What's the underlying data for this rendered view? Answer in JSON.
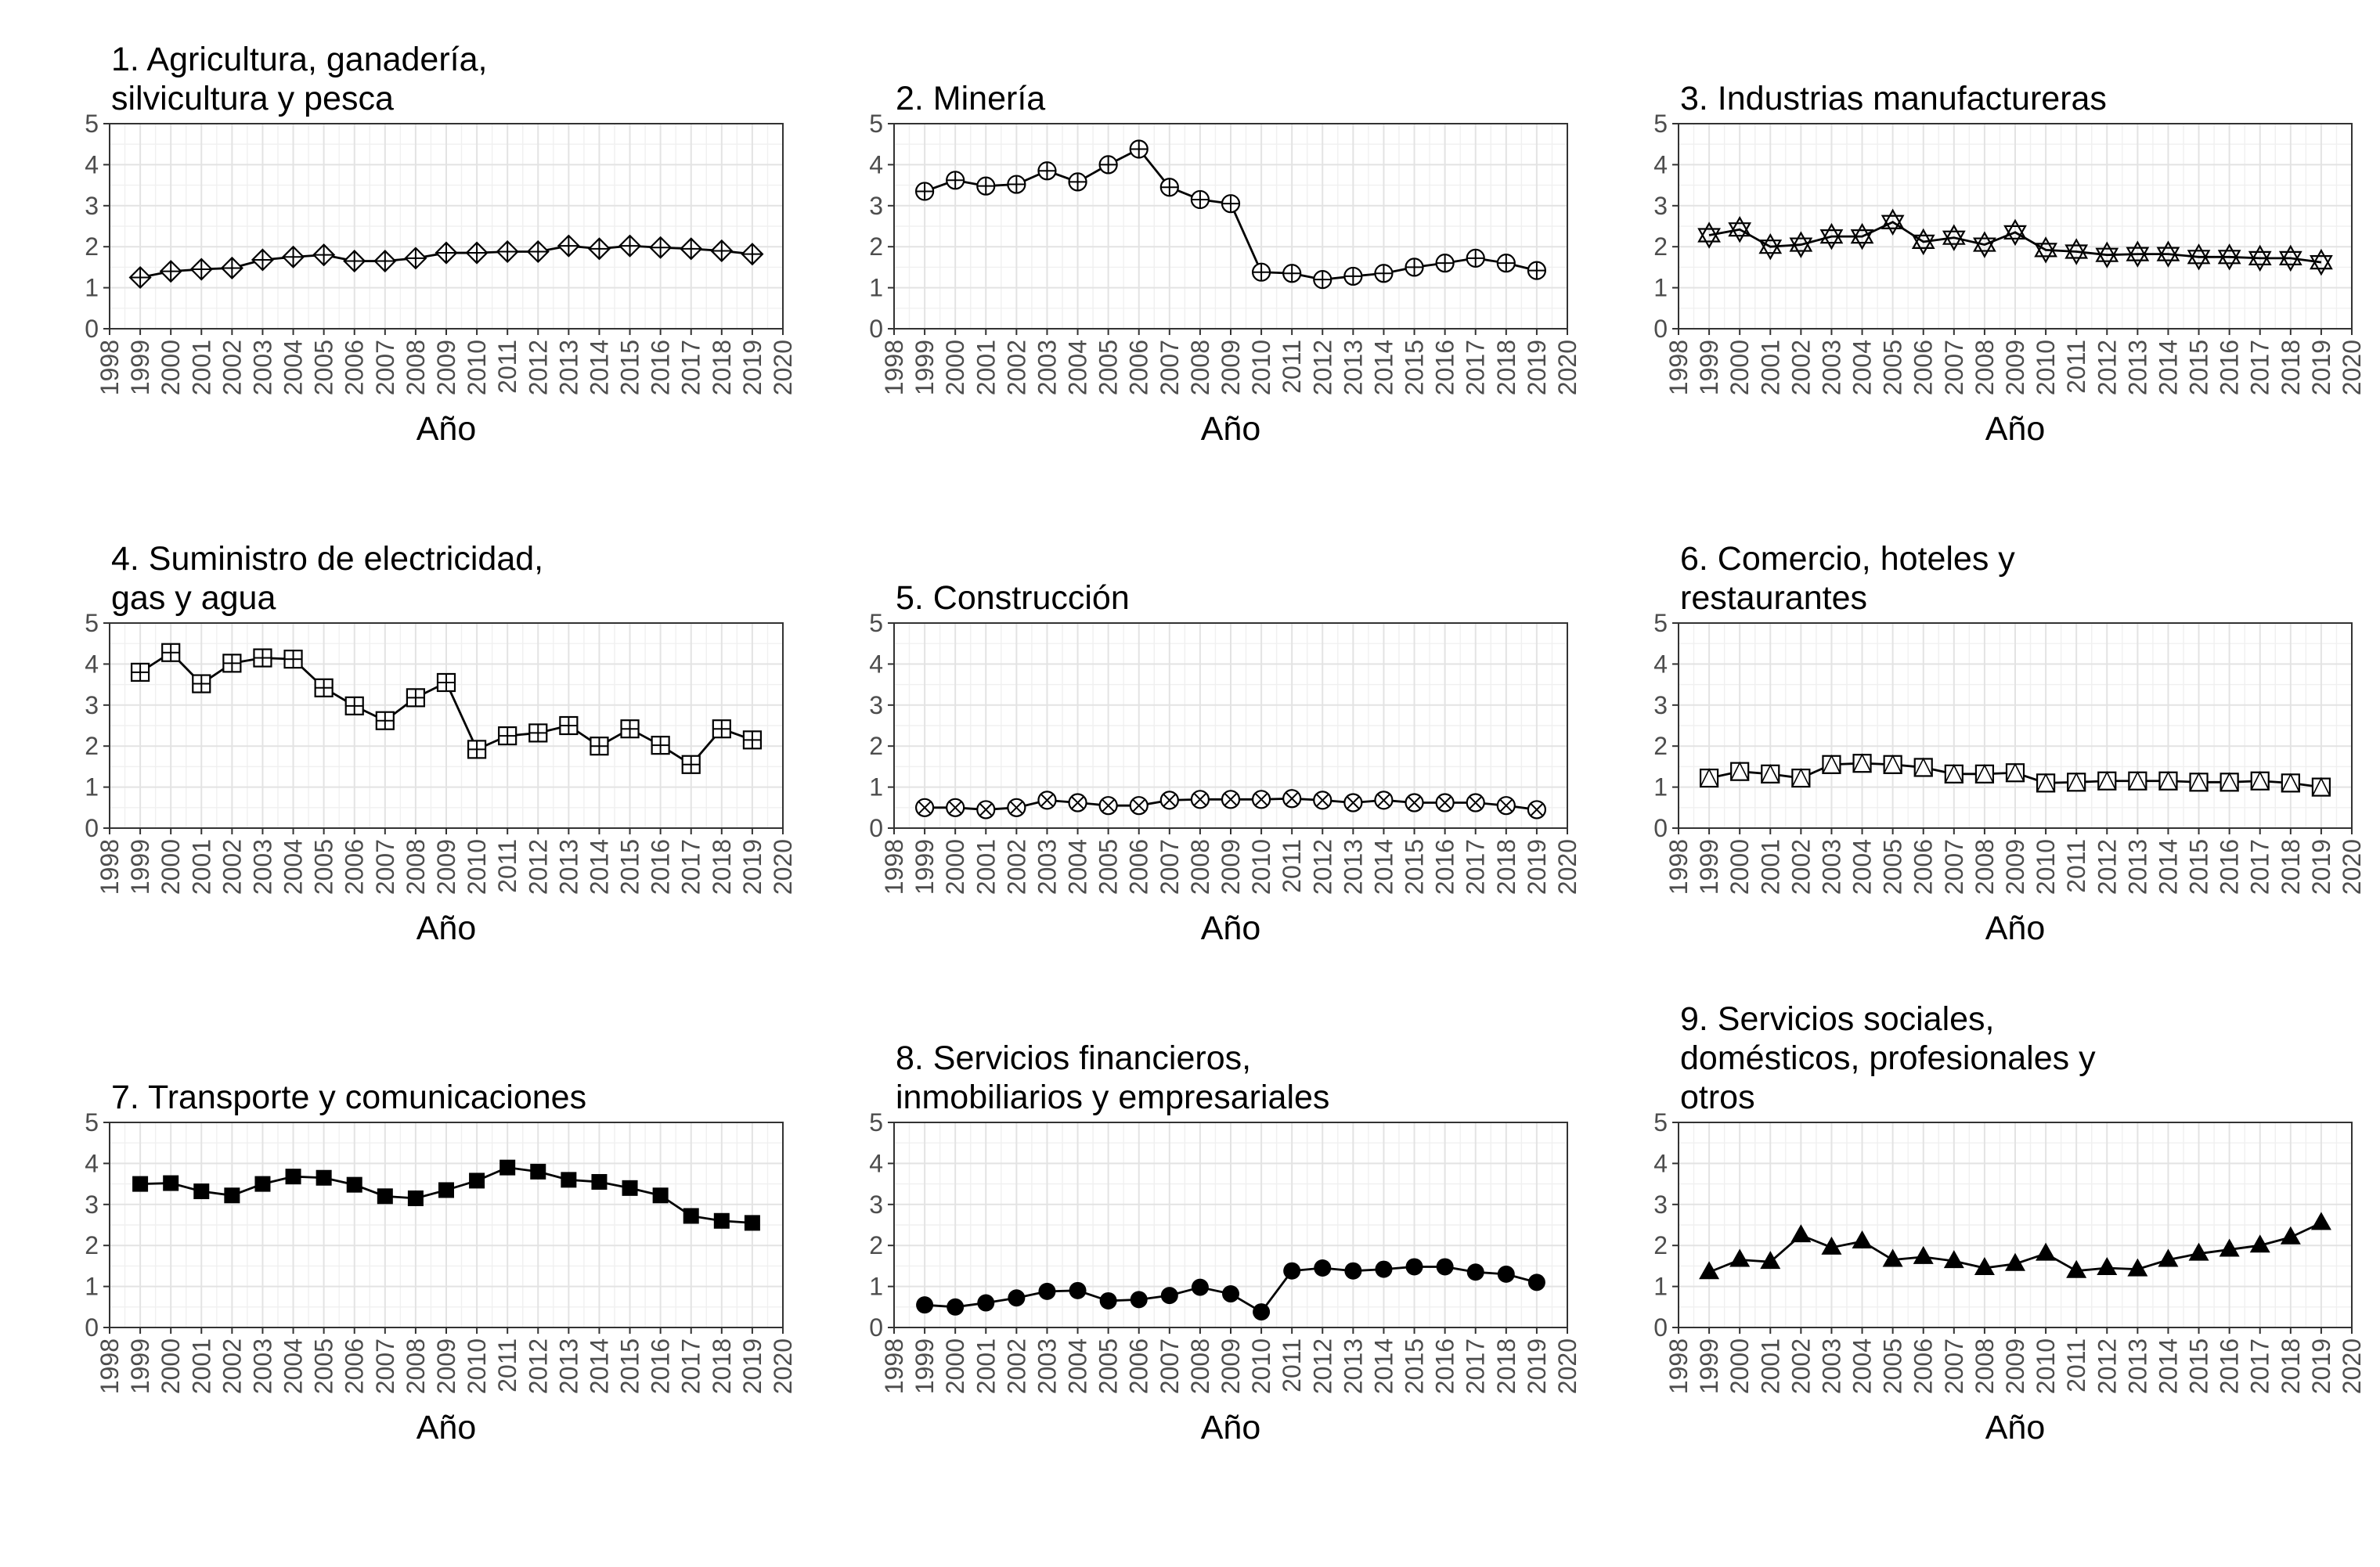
{
  "chart_data": [
    {
      "type": "line",
      "title_lines": [
        "1. Agricultura, ganadería,",
        "silvicultura y pesca"
      ],
      "xlabel": "Año",
      "xlim": [
        1998,
        2020
      ],
      "ylim": [
        0,
        5
      ],
      "x_ticks": [
        1998,
        1999,
        2000,
        2001,
        2002,
        2003,
        2004,
        2005,
        2006,
        2007,
        2008,
        2009,
        2010,
        2011,
        2012,
        2013,
        2014,
        2015,
        2016,
        2017,
        2018,
        2019,
        2020
      ],
      "y_ticks": [
        0,
        1,
        2,
        3,
        4,
        5
      ],
      "marker": "diamond-plus",
      "grid": true,
      "x": [
        1999,
        2000,
        2001,
        2002,
        2003,
        2004,
        2005,
        2006,
        2007,
        2008,
        2009,
        2010,
        2011,
        2012,
        2013,
        2014,
        2015,
        2016,
        2017,
        2018,
        2019
      ],
      "values": [
        1.25,
        1.4,
        1.45,
        1.48,
        1.68,
        1.75,
        1.8,
        1.65,
        1.65,
        1.72,
        1.85,
        1.85,
        1.88,
        1.88,
        2.02,
        1.95,
        2.02,
        1.98,
        1.95,
        1.9,
        1.82
      ]
    },
    {
      "type": "line",
      "title_lines": [
        "2. Minería"
      ],
      "xlabel": "Año",
      "xlim": [
        1998,
        2020
      ],
      "ylim": [
        0,
        5
      ],
      "x_ticks": [
        1998,
        1999,
        2000,
        2001,
        2002,
        2003,
        2004,
        2005,
        2006,
        2007,
        2008,
        2009,
        2010,
        2011,
        2012,
        2013,
        2014,
        2015,
        2016,
        2017,
        2018,
        2019,
        2020
      ],
      "y_ticks": [
        0,
        1,
        2,
        3,
        4,
        5
      ],
      "marker": "circle-plus",
      "grid": true,
      "x": [
        1999,
        2000,
        2001,
        2002,
        2003,
        2004,
        2005,
        2006,
        2007,
        2008,
        2009,
        2010,
        2011,
        2012,
        2013,
        2014,
        2015,
        2016,
        2017,
        2018,
        2019
      ],
      "values": [
        3.35,
        3.62,
        3.48,
        3.52,
        3.85,
        3.58,
        4.0,
        4.38,
        3.45,
        3.15,
        3.05,
        1.38,
        1.35,
        1.2,
        1.28,
        1.35,
        1.5,
        1.6,
        1.72,
        1.6,
        1.42
      ]
    },
    {
      "type": "line",
      "title_lines": [
        "3. Industrias manufactureras"
      ],
      "xlabel": "Año",
      "xlim": [
        1998,
        2020
      ],
      "ylim": [
        0,
        5
      ],
      "x_ticks": [
        1998,
        1999,
        2000,
        2001,
        2002,
        2003,
        2004,
        2005,
        2006,
        2007,
        2008,
        2009,
        2010,
        2011,
        2012,
        2013,
        2014,
        2015,
        2016,
        2017,
        2018,
        2019,
        2020
      ],
      "y_ticks": [
        0,
        1,
        2,
        3,
        4,
        5
      ],
      "marker": "triangles-star",
      "grid": true,
      "x": [
        1999,
        2000,
        2001,
        2002,
        2003,
        2004,
        2005,
        2006,
        2007,
        2008,
        2009,
        2010,
        2011,
        2012,
        2013,
        2014,
        2015,
        2016,
        2017,
        2018,
        2019
      ],
      "values": [
        2.28,
        2.42,
        2.0,
        2.05,
        2.25,
        2.25,
        2.6,
        2.12,
        2.22,
        2.05,
        2.35,
        1.92,
        1.88,
        1.8,
        1.82,
        1.82,
        1.75,
        1.75,
        1.72,
        1.72,
        1.62
      ]
    },
    {
      "type": "line",
      "title_lines": [
        "4. Suministro de electricidad,",
        "gas y agua"
      ],
      "xlabel": "Año",
      "xlim": [
        1998,
        2020
      ],
      "ylim": [
        0,
        5
      ],
      "x_ticks": [
        1998,
        1999,
        2000,
        2001,
        2002,
        2003,
        2004,
        2005,
        2006,
        2007,
        2008,
        2009,
        2010,
        2011,
        2012,
        2013,
        2014,
        2015,
        2016,
        2017,
        2018,
        2019,
        2020
      ],
      "y_ticks": [
        0,
        1,
        2,
        3,
        4,
        5
      ],
      "marker": "square-plus",
      "grid": true,
      "x": [
        1999,
        2000,
        2001,
        2002,
        2003,
        2004,
        2005,
        2006,
        2007,
        2008,
        2009,
        2010,
        2011,
        2012,
        2013,
        2014,
        2015,
        2016,
        2017,
        2018,
        2019
      ],
      "values": [
        3.8,
        4.28,
        3.52,
        4.02,
        4.15,
        4.12,
        3.42,
        2.98,
        2.62,
        3.18,
        3.55,
        1.92,
        2.25,
        2.32,
        2.5,
        2.0,
        2.42,
        2.02,
        1.55,
        2.42,
        2.15
      ]
    },
    {
      "type": "line",
      "title_lines": [
        "5. Construcción"
      ],
      "xlabel": "Año",
      "xlim": [
        1998,
        2020
      ],
      "ylim": [
        0,
        5
      ],
      "x_ticks": [
        1998,
        1999,
        2000,
        2001,
        2002,
        2003,
        2004,
        2005,
        2006,
        2007,
        2008,
        2009,
        2010,
        2011,
        2012,
        2013,
        2014,
        2015,
        2016,
        2017,
        2018,
        2019,
        2020
      ],
      "y_ticks": [
        0,
        1,
        2,
        3,
        4,
        5
      ],
      "marker": "circle-cross",
      "grid": true,
      "x": [
        1999,
        2000,
        2001,
        2002,
        2003,
        2004,
        2005,
        2006,
        2007,
        2008,
        2009,
        2010,
        2011,
        2012,
        2013,
        2014,
        2015,
        2016,
        2017,
        2018,
        2019
      ],
      "values": [
        0.5,
        0.5,
        0.45,
        0.5,
        0.68,
        0.62,
        0.55,
        0.55,
        0.68,
        0.7,
        0.7,
        0.7,
        0.72,
        0.68,
        0.62,
        0.68,
        0.62,
        0.62,
        0.62,
        0.55,
        0.45
      ]
    },
    {
      "type": "line",
      "title_lines": [
        "6. Comercio, hoteles y",
        "restaurantes"
      ],
      "xlabel": "Año",
      "xlim": [
        1998,
        2020
      ],
      "ylim": [
        0,
        5
      ],
      "x_ticks": [
        1998,
        1999,
        2000,
        2001,
        2002,
        2003,
        2004,
        2005,
        2006,
        2007,
        2008,
        2009,
        2010,
        2011,
        2012,
        2013,
        2014,
        2015,
        2016,
        2017,
        2018,
        2019,
        2020
      ],
      "y_ticks": [
        0,
        1,
        2,
        3,
        4,
        5
      ],
      "marker": "square-triangle",
      "grid": true,
      "x": [
        1999,
        2000,
        2001,
        2002,
        2003,
        2004,
        2005,
        2006,
        2007,
        2008,
        2009,
        2010,
        2011,
        2012,
        2013,
        2014,
        2015,
        2016,
        2017,
        2018,
        2019
      ],
      "values": [
        1.22,
        1.38,
        1.32,
        1.22,
        1.55,
        1.58,
        1.55,
        1.48,
        1.32,
        1.32,
        1.35,
        1.1,
        1.12,
        1.15,
        1.15,
        1.15,
        1.12,
        1.12,
        1.15,
        1.1,
        1.0
      ]
    },
    {
      "type": "line",
      "title_lines": [
        "7. Transporte y comunicaciones"
      ],
      "xlabel": "Año",
      "xlim": [
        1998,
        2020
      ],
      "ylim": [
        0,
        5
      ],
      "x_ticks": [
        1998,
        1999,
        2000,
        2001,
        2002,
        2003,
        2004,
        2005,
        2006,
        2007,
        2008,
        2009,
        2010,
        2011,
        2012,
        2013,
        2014,
        2015,
        2016,
        2017,
        2018,
        2019,
        2020
      ],
      "y_ticks": [
        0,
        1,
        2,
        3,
        4,
        5
      ],
      "marker": "filled-square",
      "grid": true,
      "x": [
        1999,
        2000,
        2001,
        2002,
        2003,
        2004,
        2005,
        2006,
        2007,
        2008,
        2009,
        2010,
        2011,
        2012,
        2013,
        2014,
        2015,
        2016,
        2017,
        2018,
        2019
      ],
      "values": [
        3.5,
        3.52,
        3.32,
        3.22,
        3.5,
        3.68,
        3.65,
        3.48,
        3.2,
        3.15,
        3.35,
        3.58,
        3.9,
        3.8,
        3.6,
        3.55,
        3.4,
        3.22,
        2.72,
        2.6,
        2.55
      ]
    },
    {
      "type": "line",
      "title_lines": [
        "8. Servicios financieros,",
        "inmobiliarios y empresariales"
      ],
      "xlabel": "Año",
      "xlim": [
        1998,
        2020
      ],
      "ylim": [
        0,
        5
      ],
      "x_ticks": [
        1998,
        1999,
        2000,
        2001,
        2002,
        2003,
        2004,
        2005,
        2006,
        2007,
        2008,
        2009,
        2010,
        2011,
        2012,
        2013,
        2014,
        2015,
        2016,
        2017,
        2018,
        2019,
        2020
      ],
      "y_ticks": [
        0,
        1,
        2,
        3,
        4,
        5
      ],
      "marker": "filled-circle",
      "grid": true,
      "x": [
        1999,
        2000,
        2001,
        2002,
        2003,
        2004,
        2005,
        2006,
        2007,
        2008,
        2009,
        2010,
        2011,
        2012,
        2013,
        2014,
        2015,
        2016,
        2017,
        2018,
        2019
      ],
      "values": [
        0.55,
        0.5,
        0.6,
        0.72,
        0.88,
        0.9,
        0.65,
        0.68,
        0.78,
        0.98,
        0.82,
        0.38,
        1.38,
        1.45,
        1.38,
        1.42,
        1.48,
        1.48,
        1.35,
        1.3,
        1.1
      ]
    },
    {
      "type": "line",
      "title_lines": [
        "9. Servicios sociales,",
        "domésticos, profesionales y",
        "otros"
      ],
      "xlabel": "Año",
      "xlim": [
        1998,
        2020
      ],
      "ylim": [
        0,
        5
      ],
      "x_ticks": [
        1998,
        1999,
        2000,
        2001,
        2002,
        2003,
        2004,
        2005,
        2006,
        2007,
        2008,
        2009,
        2010,
        2011,
        2012,
        2013,
        2014,
        2015,
        2016,
        2017,
        2018,
        2019,
        2020
      ],
      "y_ticks": [
        0,
        1,
        2,
        3,
        4,
        5
      ],
      "marker": "filled-triangle",
      "grid": true,
      "x": [
        1999,
        2000,
        2001,
        2002,
        2003,
        2004,
        2005,
        2006,
        2007,
        2008,
        2009,
        2010,
        2011,
        2012,
        2013,
        2014,
        2015,
        2016,
        2017,
        2018,
        2019
      ],
      "values": [
        1.35,
        1.65,
        1.6,
        2.25,
        1.95,
        2.1,
        1.65,
        1.72,
        1.62,
        1.45,
        1.55,
        1.8,
        1.38,
        1.45,
        1.42,
        1.65,
        1.8,
        1.9,
        2.0,
        2.2,
        2.55
      ]
    }
  ]
}
